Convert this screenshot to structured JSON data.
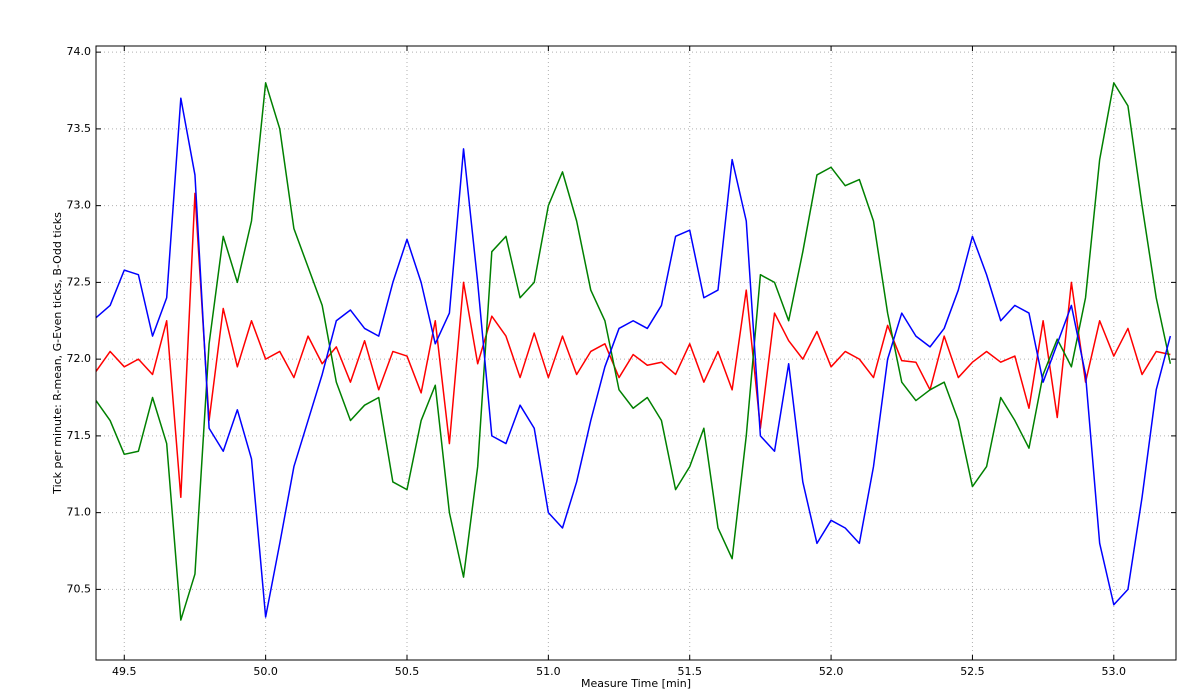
{
  "chart_data": {
    "type": "line",
    "xlabel": "Measure Time [min]",
    "ylabel": "Tick per minute: R-mean, G-Even ticks, B-Odd ticks",
    "x": [
      49.4,
      49.45,
      49.5,
      49.55,
      49.6,
      49.65,
      49.7,
      49.75,
      49.8,
      49.85,
      49.9,
      49.95,
      50.0,
      50.05,
      50.1,
      50.15,
      50.2,
      50.25,
      50.3,
      50.35,
      50.4,
      50.45,
      50.5,
      50.55,
      50.6,
      50.65,
      50.7,
      50.75,
      50.8,
      50.85,
      50.9,
      50.95,
      51.0,
      51.05,
      51.1,
      51.15,
      51.2,
      51.25,
      51.3,
      51.35,
      51.4,
      51.45,
      51.5,
      51.55,
      51.6,
      51.65,
      51.7,
      51.75,
      51.8,
      51.85,
      51.9,
      51.95,
      52.0,
      52.05,
      52.1,
      52.15,
      52.2,
      52.25,
      52.3,
      52.35,
      52.4,
      52.45,
      52.5,
      52.55,
      52.6,
      52.65,
      52.7,
      52.75,
      52.8,
      52.85,
      52.9,
      52.95,
      53.0,
      53.05,
      53.1,
      53.15,
      53.2
    ],
    "series": [
      {
        "color": "#ff0000",
        "values": [
          71.92,
          72.05,
          71.95,
          72.0,
          71.9,
          72.25,
          71.1,
          73.08,
          71.6,
          72.33,
          71.95,
          72.25,
          72.0,
          72.05,
          71.88,
          72.15,
          71.97,
          72.08,
          71.85,
          72.12,
          71.8,
          72.05,
          72.02,
          71.78,
          72.25,
          71.45,
          72.5,
          71.97,
          72.28,
          72.15,
          71.88,
          72.17,
          71.88,
          72.15,
          71.9,
          72.05,
          72.1,
          71.88,
          72.03,
          71.96,
          71.98,
          71.9,
          72.1,
          71.85,
          72.05,
          71.8,
          72.45,
          71.55,
          72.3,
          72.12,
          72.0,
          72.18,
          71.95,
          72.05,
          72.0,
          71.88,
          72.22,
          71.99,
          71.98,
          71.8,
          72.15,
          71.88,
          71.98,
          72.05,
          71.98,
          72.02,
          71.68,
          72.25,
          71.62,
          72.5,
          71.85,
          72.25,
          72.02,
          72.2,
          71.9,
          72.05,
          72.03
        ]
      },
      {
        "color": "#008000",
        "values": [
          71.73,
          71.6,
          71.38,
          71.4,
          71.75,
          71.45,
          70.3,
          70.6,
          72.1,
          72.8,
          72.5,
          72.9,
          73.8,
          73.5,
          72.85,
          72.6,
          72.35,
          71.85,
          71.6,
          71.7,
          71.75,
          71.2,
          71.15,
          71.6,
          71.83,
          71.0,
          70.58,
          71.3,
          72.7,
          72.8,
          72.4,
          72.5,
          73.0,
          73.22,
          72.9,
          72.45,
          72.25,
          71.8,
          71.68,
          71.75,
          71.6,
          71.15,
          71.3,
          71.55,
          70.9,
          70.7,
          71.5,
          72.55,
          72.5,
          72.25,
          72.7,
          73.2,
          73.25,
          73.13,
          73.17,
          72.9,
          72.3,
          71.85,
          71.73,
          71.8,
          71.85,
          71.6,
          71.17,
          71.3,
          71.75,
          71.6,
          71.42,
          71.9,
          72.13,
          71.95,
          72.4,
          73.3,
          73.8,
          73.65,
          73.0,
          72.4,
          71.97
        ]
      },
      {
        "color": "#0000ff",
        "values": [
          72.27,
          72.35,
          72.58,
          72.55,
          72.15,
          72.4,
          73.7,
          73.2,
          71.55,
          71.4,
          71.67,
          71.35,
          70.32,
          70.8,
          71.3,
          71.6,
          71.9,
          72.25,
          72.32,
          72.2,
          72.15,
          72.5,
          72.78,
          72.5,
          72.1,
          72.3,
          73.37,
          72.5,
          71.5,
          71.45,
          71.7,
          71.55,
          71.0,
          70.9,
          71.2,
          71.6,
          71.95,
          72.2,
          72.25,
          72.2,
          72.35,
          72.8,
          72.84,
          72.4,
          72.45,
          73.3,
          72.9,
          71.5,
          71.4,
          71.97,
          71.2,
          70.8,
          70.95,
          70.9,
          70.8,
          71.3,
          72.0,
          72.3,
          72.15,
          72.08,
          72.2,
          72.45,
          72.8,
          72.55,
          72.25,
          72.35,
          72.3,
          71.85,
          72.1,
          72.35,
          71.9,
          70.8,
          70.4,
          70.5,
          71.1,
          71.8,
          72.15
        ]
      }
    ],
    "xlim": [
      49.4,
      53.22
    ],
    "xticks": [
      49.5,
      {
        "value": 50,
        "label": "50.0"
      },
      50.5,
      {
        "value": 51,
        "label": "51.0"
      },
      51.5,
      {
        "value": 52,
        "label": "52.0"
      },
      52.5,
      {
        "value": 53,
        "label": "53.0"
      }
    ],
    "ylim": [
      70.04,
      74.04
    ],
    "yticks": [
      70.5,
      {
        "value": 71,
        "label": "71.0"
      },
      71.5,
      {
        "value": 72,
        "label": "72.0"
      },
      72.5,
      {
        "value": 73,
        "label": "73.0"
      },
      73.5,
      {
        "value": 74,
        "label": "74.0"
      }
    ],
    "grid": true
  }
}
